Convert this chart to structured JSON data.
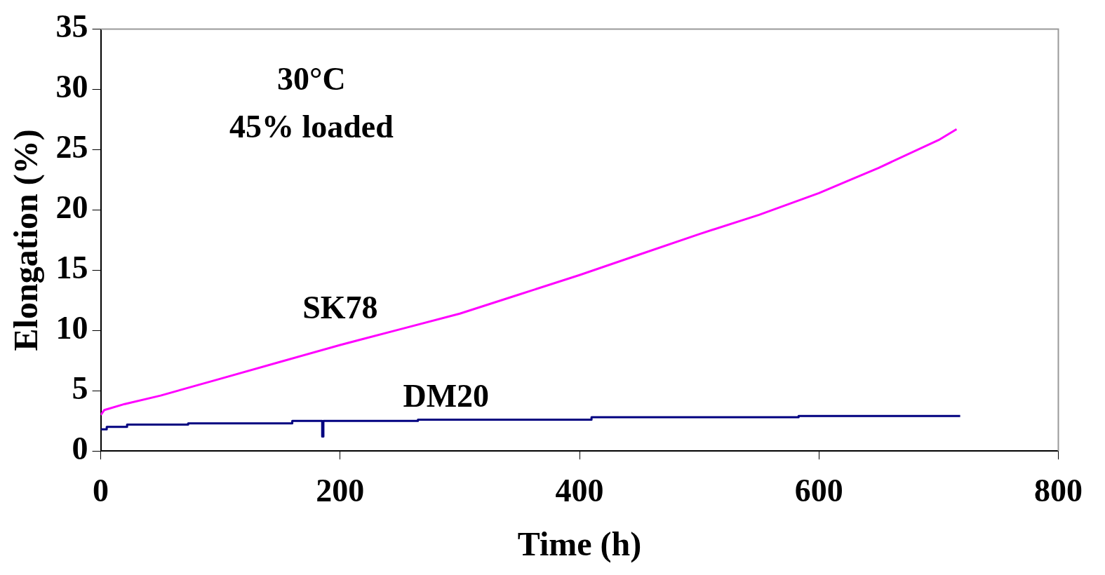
{
  "chart_data": {
    "type": "line",
    "xlabel": "Time (h)",
    "ylabel": "Elongation (%)",
    "xlim": [
      0,
      800
    ],
    "xticks": [
      0,
      200,
      400,
      600,
      800
    ],
    "ylim": [
      0,
      35
    ],
    "yticks": [
      0,
      5,
      10,
      15,
      20,
      25,
      30,
      35
    ],
    "grid": false,
    "legend": false,
    "marker": "none",
    "annotations": [
      "30°C",
      "45% loaded"
    ],
    "series": [
      {
        "name": "SK78",
        "color": "#ff00ff",
        "x": [
          0,
          3,
          20,
          50,
          100,
          150,
          200,
          250,
          300,
          350,
          400,
          450,
          500,
          550,
          600,
          650,
          700,
          715
        ],
        "values": [
          3.0,
          3.4,
          3.9,
          4.6,
          6.0,
          7.4,
          8.8,
          10.1,
          11.4,
          13.0,
          14.6,
          16.3,
          18.0,
          19.6,
          21.4,
          23.5,
          25.8,
          26.7
        ]
      },
      {
        "name": "DM20",
        "type": "step",
        "color": "#000080",
        "x": [
          0,
          5,
          22,
          73,
          160,
          185,
          186,
          265,
          410,
          583,
          718
        ],
        "values": [
          1.8,
          2.0,
          2.2,
          2.3,
          2.5,
          1.2,
          2.5,
          2.6,
          2.8,
          2.9,
          2.9
        ]
      }
    ]
  }
}
